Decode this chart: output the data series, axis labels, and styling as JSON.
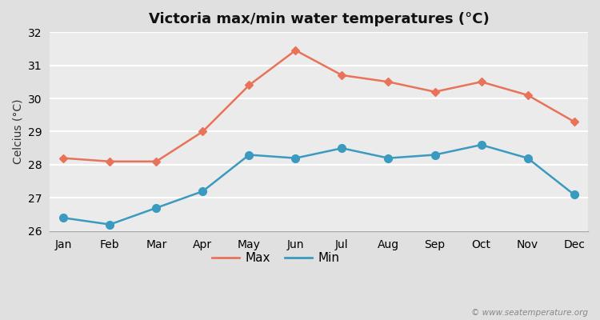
{
  "title": "Victoria max/min water temperatures (°C)",
  "ylabel": "Celcius (°C)",
  "months": [
    "Jan",
    "Feb",
    "Mar",
    "Apr",
    "May",
    "Jun",
    "Jul",
    "Aug",
    "Sep",
    "Oct",
    "Nov",
    "Dec"
  ],
  "max_temps": [
    28.2,
    28.1,
    28.1,
    29.0,
    30.4,
    31.45,
    30.7,
    30.5,
    30.2,
    30.5,
    30.1,
    29.3
  ],
  "min_temps": [
    26.4,
    26.2,
    26.7,
    27.2,
    28.3,
    28.2,
    28.5,
    28.2,
    28.3,
    28.6,
    28.2,
    27.1
  ],
  "max_color": "#e8735a",
  "min_color": "#3a9abf",
  "bg_color": "#e0e0e0",
  "plot_bg_color": "#ebebeb",
  "ylim": [
    26,
    32
  ],
  "yticks": [
    26,
    27,
    28,
    29,
    30,
    31,
    32
  ],
  "watermark": "© www.seatemperature.org",
  "legend_max": "Max",
  "legend_min": "Min",
  "title_fontsize": 13,
  "label_fontsize": 10,
  "tick_fontsize": 10,
  "grid_color": "#ffffff",
  "grid_linewidth": 1.5
}
